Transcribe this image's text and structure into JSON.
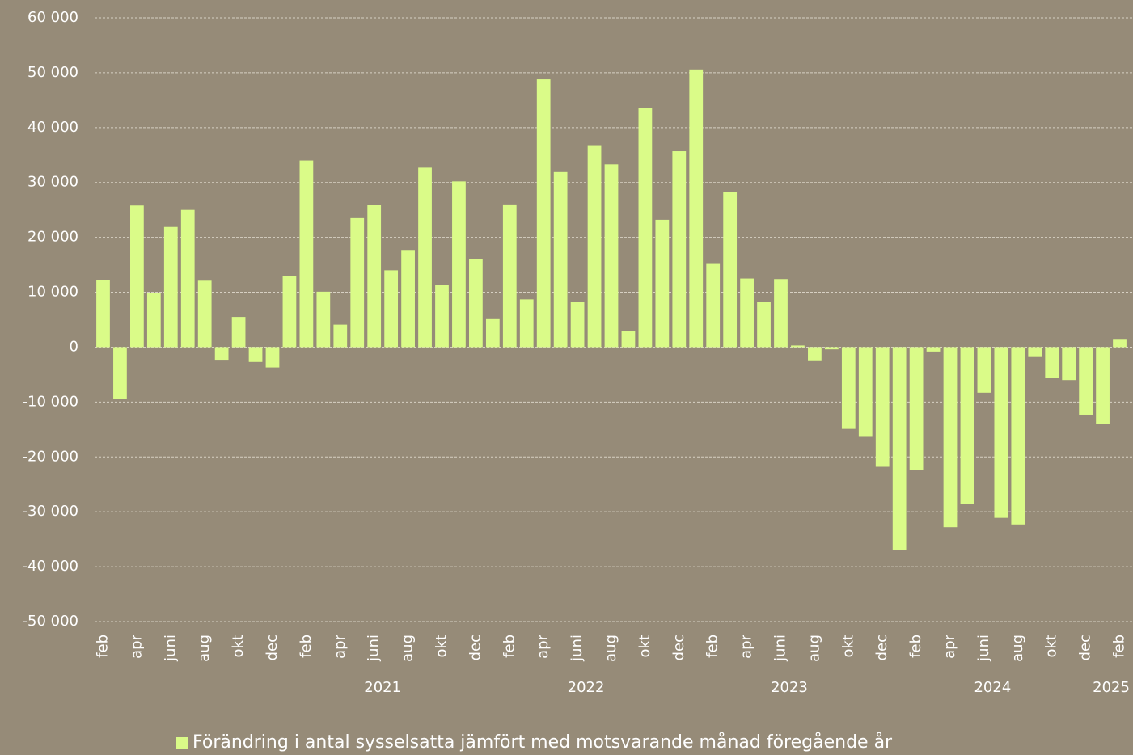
{
  "chart_data": {
    "type": "bar",
    "categories": [
      "feb",
      null,
      "apr",
      null,
      "juni",
      null,
      "aug",
      null,
      "okt",
      null,
      "dec",
      null,
      "feb",
      null,
      "apr",
      null,
      "juni",
      null,
      "aug",
      null,
      "okt",
      null,
      "dec",
      null,
      "feb",
      null,
      "apr",
      null,
      "juni",
      null,
      "aug",
      null,
      "okt",
      null,
      "dec",
      null,
      "feb",
      null,
      "apr",
      null,
      "juni",
      null,
      "aug",
      null,
      "okt",
      null,
      "dec",
      null,
      "feb",
      null,
      "apr",
      null,
      "juni",
      null,
      "aug",
      null,
      "okt",
      null,
      "dec",
      null,
      "feb"
    ],
    "year_groups": [
      {
        "label": "2021",
        "start": 11,
        "end": 22
      },
      {
        "label": "2022",
        "start": 23,
        "end": 34
      },
      {
        "label": "2023",
        "start": 35,
        "end": 46
      },
      {
        "label": "2024",
        "start": 47,
        "end": 58
      },
      {
        "label": "2025",
        "start": 59,
        "end": 60
      }
    ],
    "series": [
      {
        "name": "Förändring i antal sysselsatta jämfört med motsvarande månad föregående år",
        "color": "#dafb88",
        "values": [
          12200,
          -9400,
          25800,
          9900,
          21900,
          25000,
          12100,
          -2300,
          5500,
          -2700,
          -3700,
          13000,
          34000,
          10100,
          4100,
          23500,
          25900,
          14000,
          17700,
          32700,
          11300,
          30200,
          16100,
          5100,
          26000,
          8700,
          48800,
          31900,
          8200,
          36800,
          33300,
          2900,
          43600,
          23200,
          35700,
          50600,
          15300,
          28300,
          12500,
          8300,
          12400,
          300,
          -2400,
          -400,
          -14900,
          -16200,
          -21800,
          -37000,
          -22400,
          -800,
          -32800,
          -28500,
          -8300,
          -31100,
          -32300,
          -1800,
          -5600,
          -6000,
          -12300,
          -14000,
          1500
        ]
      }
    ],
    "ylim": [
      -50000,
      60000
    ],
    "yticks": [
      {
        "value": -50000,
        "label": "-50 000"
      },
      {
        "value": -40000,
        "label": "-40 000"
      },
      {
        "value": -30000,
        "label": "-30 000"
      },
      {
        "value": -20000,
        "label": "-20 000"
      },
      {
        "value": -10000,
        "label": "-10 000"
      },
      0,
      {
        "value": 10000,
        "label": "10 000"
      },
      {
        "value": 20000,
        "label": "20 000"
      },
      {
        "value": 30000,
        "label": "30 000"
      },
      {
        "value": 40000,
        "label": "40 000"
      },
      {
        "value": 50000,
        "label": "50 000"
      },
      {
        "value": 60000,
        "label": "60 000"
      }
    ],
    "grid": true,
    "legend": "bottom"
  }
}
